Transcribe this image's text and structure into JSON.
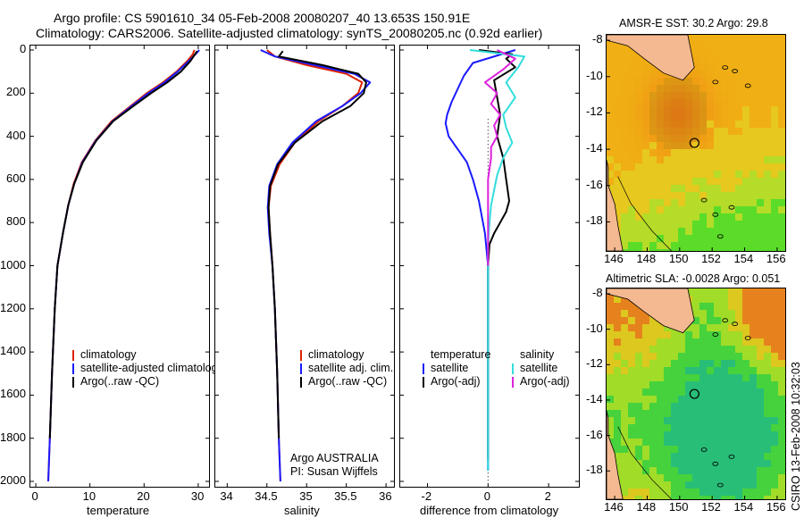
{
  "header": {
    "line1": "Argo profile: CS 5901610_34 05-Feb-2008 20080207_40 13.653S 150.91E",
    "line2": "Climatology: CARS2006. Satellite-adjusted climatology: synTS_20080205.nc (0.92d earlier)"
  },
  "colors": {
    "climatology": "#dd2200",
    "satellite": "#1a1aff",
    "argo": "#000000",
    "argo_sal_adj": "#dd22dd",
    "satellite_sal": "#33dddd"
  },
  "chart_data": [
    {
      "type": "line",
      "id": "temperature",
      "xlabel": "temperature",
      "ylabel": "",
      "xlim": [
        -1,
        32
      ],
      "ylim": [
        0,
        2080
      ],
      "xticks": [
        "0",
        "10",
        "20",
        "30"
      ],
      "yticks": [
        "0",
        "200",
        "400",
        "600",
        "800",
        "1000",
        "1200",
        "1400",
        "1600",
        "1800",
        "2000"
      ],
      "legend": [
        "climatology",
        "satellite-adjusted climatology",
        "Argo(..raw -QC)"
      ],
      "series": [
        {
          "name": "climatology",
          "x": [
            29.3,
            29.0,
            28.0,
            26.0,
            23.5,
            20.5,
            17.5,
            14.0,
            11.0,
            8.5,
            7.0,
            6.0,
            5.0,
            4.0,
            3.5,
            3.0,
            2.6,
            2.3
          ],
          "y": [
            0,
            20,
            50,
            100,
            150,
            200,
            260,
            330,
            420,
            520,
            620,
            720,
            850,
            1000,
            1200,
            1500,
            1800,
            2000
          ]
        },
        {
          "name": "satellite-adjusted climatology",
          "x": [
            30.2,
            29.5,
            28.3,
            26.2,
            23.8,
            20.8,
            17.7,
            14.2,
            11.1,
            8.6,
            7.1,
            6.0,
            5.0,
            4.0,
            3.5,
            3.0,
            2.6,
            2.3
          ],
          "y": [
            0,
            20,
            50,
            100,
            150,
            200,
            260,
            330,
            420,
            520,
            620,
            720,
            850,
            1000,
            1200,
            1500,
            1800,
            2000
          ]
        },
        {
          "name": "Argo(..raw -QC)",
          "x": [
            29.8,
            29.4,
            28.6,
            26.8,
            24.3,
            21.3,
            18.0,
            14.3,
            11.2,
            8.7,
            7.1,
            6.0,
            5.0,
            4.0,
            3.5,
            3.0,
            2.6
          ],
          "y": [
            5,
            20,
            50,
            100,
            150,
            200,
            260,
            330,
            420,
            520,
            620,
            720,
            850,
            1000,
            1200,
            1500,
            1800
          ]
        }
      ]
    },
    {
      "type": "line",
      "id": "salinity",
      "xlabel": "salinity",
      "ylabel": "",
      "xlim": [
        33.85,
        36.1
      ],
      "ylim": [
        0,
        2080
      ],
      "xticks": [
        "34",
        "34.5",
        "35",
        "35.5",
        "36"
      ],
      "legend": [
        "climatology",
        "satellite adj. clim.",
        "Argo(..raw -QC)"
      ],
      "annotation": [
        "Argo AUSTRALIA",
        "PI: Susan Wijffels"
      ],
      "series": [
        {
          "name": "climatology",
          "x": [
            34.5,
            34.6,
            35.0,
            35.5,
            35.7,
            35.65,
            35.45,
            35.15,
            34.85,
            34.66,
            34.55,
            34.52,
            34.54,
            34.57,
            34.6,
            34.63,
            34.65,
            34.67
          ],
          "y": [
            0,
            30,
            70,
            110,
            150,
            200,
            260,
            330,
            430,
            530,
            630,
            730,
            850,
            1000,
            1200,
            1500,
            1800,
            2000
          ]
        },
        {
          "name": "satellite adj. clim.",
          "x": [
            34.42,
            34.6,
            35.1,
            35.6,
            35.8,
            35.68,
            35.45,
            35.12,
            34.82,
            34.63,
            34.53,
            34.51,
            34.53,
            34.57,
            34.6,
            34.63,
            34.65,
            34.67
          ],
          "y": [
            0,
            30,
            70,
            110,
            150,
            200,
            260,
            330,
            430,
            530,
            630,
            730,
            850,
            1000,
            1200,
            1500,
            1800,
            2000
          ]
        },
        {
          "name": "Argo(..raw -QC)",
          "x": [
            34.7,
            34.65,
            35.2,
            35.65,
            35.75,
            35.72,
            35.55,
            35.2,
            34.85,
            34.64,
            34.54,
            34.52,
            34.54,
            34.57,
            34.6,
            34.63,
            34.65
          ],
          "y": [
            5,
            30,
            70,
            110,
            150,
            200,
            260,
            330,
            430,
            530,
            630,
            730,
            850,
            1000,
            1200,
            1500,
            1800
          ]
        }
      ]
    },
    {
      "type": "line",
      "id": "difference",
      "xlabel": "difference from climatology",
      "xlim": [
        -2.9,
        3.0
      ],
      "ylim": [
        0,
        2080
      ],
      "xticks": [
        "-2",
        "0",
        "2"
      ],
      "legend_left_title": "temperature",
      "legend_right_title": "salinity",
      "legend_left": [
        "satellite",
        "Argo(-adj)"
      ],
      "legend_right": [
        "satellite",
        "Argo(-adj)"
      ],
      "series": [
        {
          "name": "temperature satellite",
          "x": [
            0.9,
            -0.5,
            -0.8,
            -1.0,
            -1.2,
            -1.35,
            -1.4,
            -1.3,
            -1.0,
            -0.7,
            -0.5,
            -0.3,
            -0.1,
            0,
            0,
            0,
            0
          ],
          "y": [
            0,
            60,
            120,
            180,
            240,
            300,
            340,
            400,
            460,
            520,
            600,
            700,
            850,
            1000,
            1200,
            1600,
            1950
          ]
        },
        {
          "name": "temperature Argo(-adj)",
          "x": [
            -0.3,
            0.8,
            0.6,
            0.9,
            0.2,
            0.3,
            0.4,
            0.3,
            0.5,
            0.6,
            0.7,
            0.6,
            0.4,
            0.2,
            0.05,
            0,
            0
          ],
          "y": [
            0,
            20,
            40,
            80,
            140,
            220,
            300,
            400,
            500,
            600,
            700,
            750,
            800,
            850,
            900,
            1000,
            1900
          ]
        },
        {
          "name": "salinity satellite",
          "x": [
            -0.6,
            1.2,
            1.0,
            0.6,
            0.9,
            0.7,
            0.5,
            0.6,
            0.8,
            0.5,
            0.3,
            0.2,
            0.1,
            0.05,
            0,
            0,
            0
          ],
          "y": [
            0,
            30,
            80,
            150,
            220,
            260,
            300,
            360,
            430,
            500,
            580,
            650,
            720,
            800,
            900,
            1200,
            1950
          ]
        },
        {
          "name": "salinity Argo(-adj)",
          "x": [
            0.3,
            0.9,
            0.5,
            -0.1,
            0.3,
            0.1,
            0.4,
            0.2,
            0.3,
            0.1,
            0.1,
            0,
            0,
            0,
            0
          ],
          "y": [
            0,
            40,
            90,
            150,
            200,
            250,
            300,
            350,
            400,
            450,
            500,
            600,
            700,
            900,
            1000
          ]
        }
      ]
    },
    {
      "type": "heatmap",
      "id": "sst-map",
      "title": "AMSR-E SST: 30.2 Argo: 29.8",
      "xticks": [
        "146",
        "148",
        "150",
        "152",
        "154",
        "156"
      ],
      "yticks": [
        "-8",
        "-10",
        "-12",
        "-14",
        "-16",
        "-18"
      ],
      "xlim": [
        145.5,
        156.5
      ],
      "ylim": [
        -19.6,
        -7.7
      ],
      "marker": {
        "lon": 150.91,
        "lat": -13.653
      }
    },
    {
      "type": "heatmap",
      "id": "sla-map",
      "title": "Altimetric SLA: -0.0028 Argo: 0.051",
      "xticks": [
        "146",
        "148",
        "150",
        "152",
        "154",
        "156"
      ],
      "yticks": [
        "-8",
        "-10",
        "-12",
        "-14",
        "-16",
        "-18"
      ],
      "xlim": [
        145.5,
        156.5
      ],
      "ylim": [
        -19.6,
        -7.7
      ],
      "marker": {
        "lon": 150.91,
        "lat": -13.653
      }
    }
  ],
  "credit": "CSIRO 13-Feb-2008 10:32:03"
}
